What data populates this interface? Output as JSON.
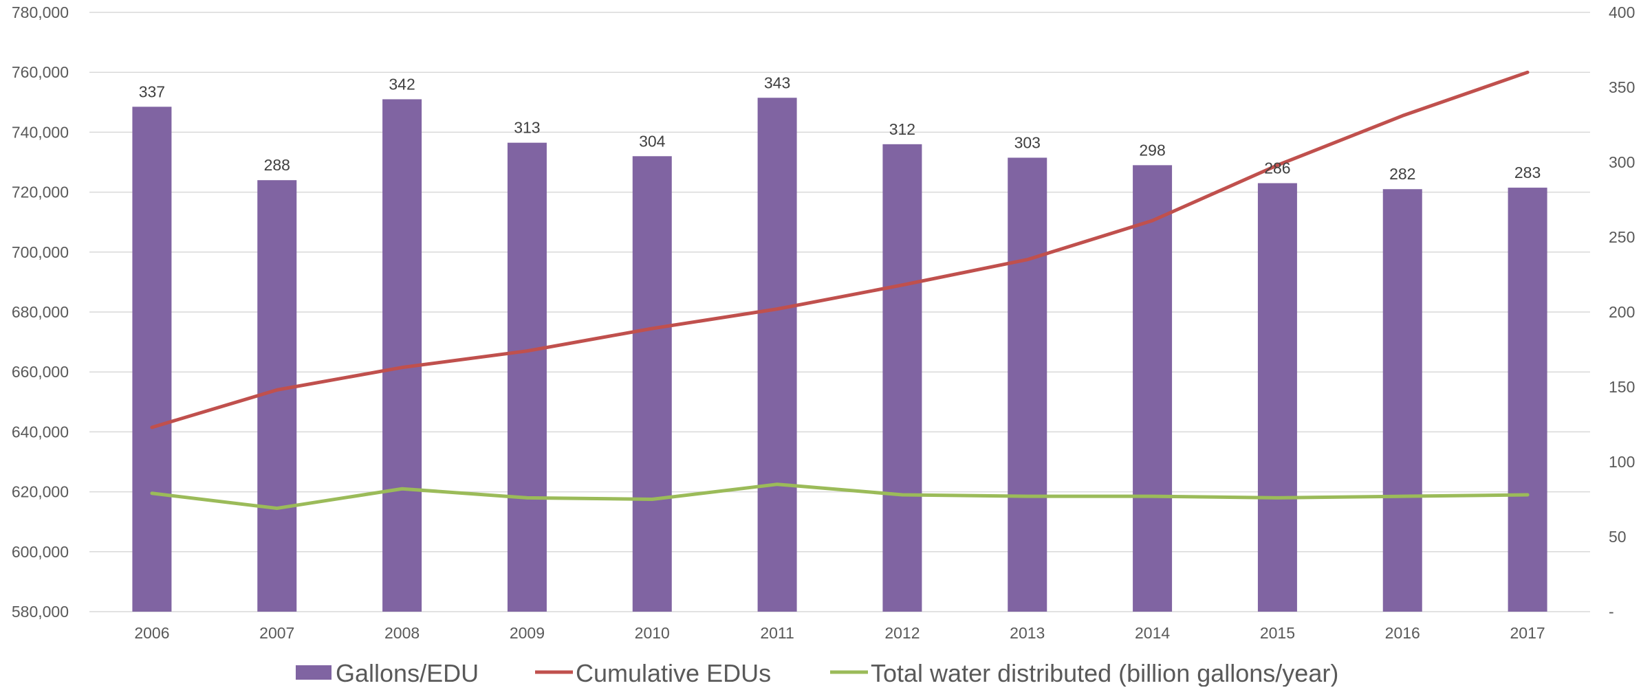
{
  "chart_data": {
    "type": "bar",
    "title": "",
    "xlabel": "",
    "ylabel": "",
    "categories": [
      "2006",
      "2007",
      "2008",
      "2009",
      "2010",
      "2011",
      "2012",
      "2013",
      "2014",
      "2015",
      "2016",
      "2017"
    ],
    "y_left": {
      "min": 580000,
      "max": 780000,
      "step": 20000,
      "tick_labels": [
        "580,000",
        "600,000",
        "620,000",
        "640,000",
        "660,000",
        "680,000",
        "700,000",
        "720,000",
        "740,000",
        "760,000",
        "780,000"
      ]
    },
    "y_right": {
      "min": 0,
      "max": 400,
      "step": 50,
      "tick_labels": [
        "-",
        "50",
        "100",
        "150",
        "200",
        "250",
        "300",
        "350",
        "400"
      ]
    },
    "grid": true,
    "legend_position": "bottom",
    "series": [
      {
        "name": "Gallons/EDU",
        "type": "bar",
        "axis": "right",
        "color": "#8064a2",
        "values": [
          337,
          288,
          342,
          313,
          304,
          343,
          312,
          303,
          298,
          286,
          282,
          283
        ],
        "data_labels": [
          "337",
          "288",
          "342",
          "313",
          "304",
          "343",
          "312",
          "303",
          "298",
          "286",
          "282",
          "283"
        ]
      },
      {
        "name": "Cumulative EDUs",
        "type": "line",
        "axis": "left",
        "color": "#c0504d",
        "values": [
          641500,
          654000,
          661500,
          667000,
          674500,
          681000,
          689000,
          697500,
          710500,
          729000,
          745500,
          760000
        ]
      },
      {
        "name": "Total water distributed (billion gallons/year)",
        "type": "line",
        "axis": "right",
        "color": "#9bbb59",
        "values": [
          79,
          69,
          82,
          76,
          75,
          85,
          78,
          77,
          77,
          76,
          77,
          78
        ]
      }
    ]
  }
}
